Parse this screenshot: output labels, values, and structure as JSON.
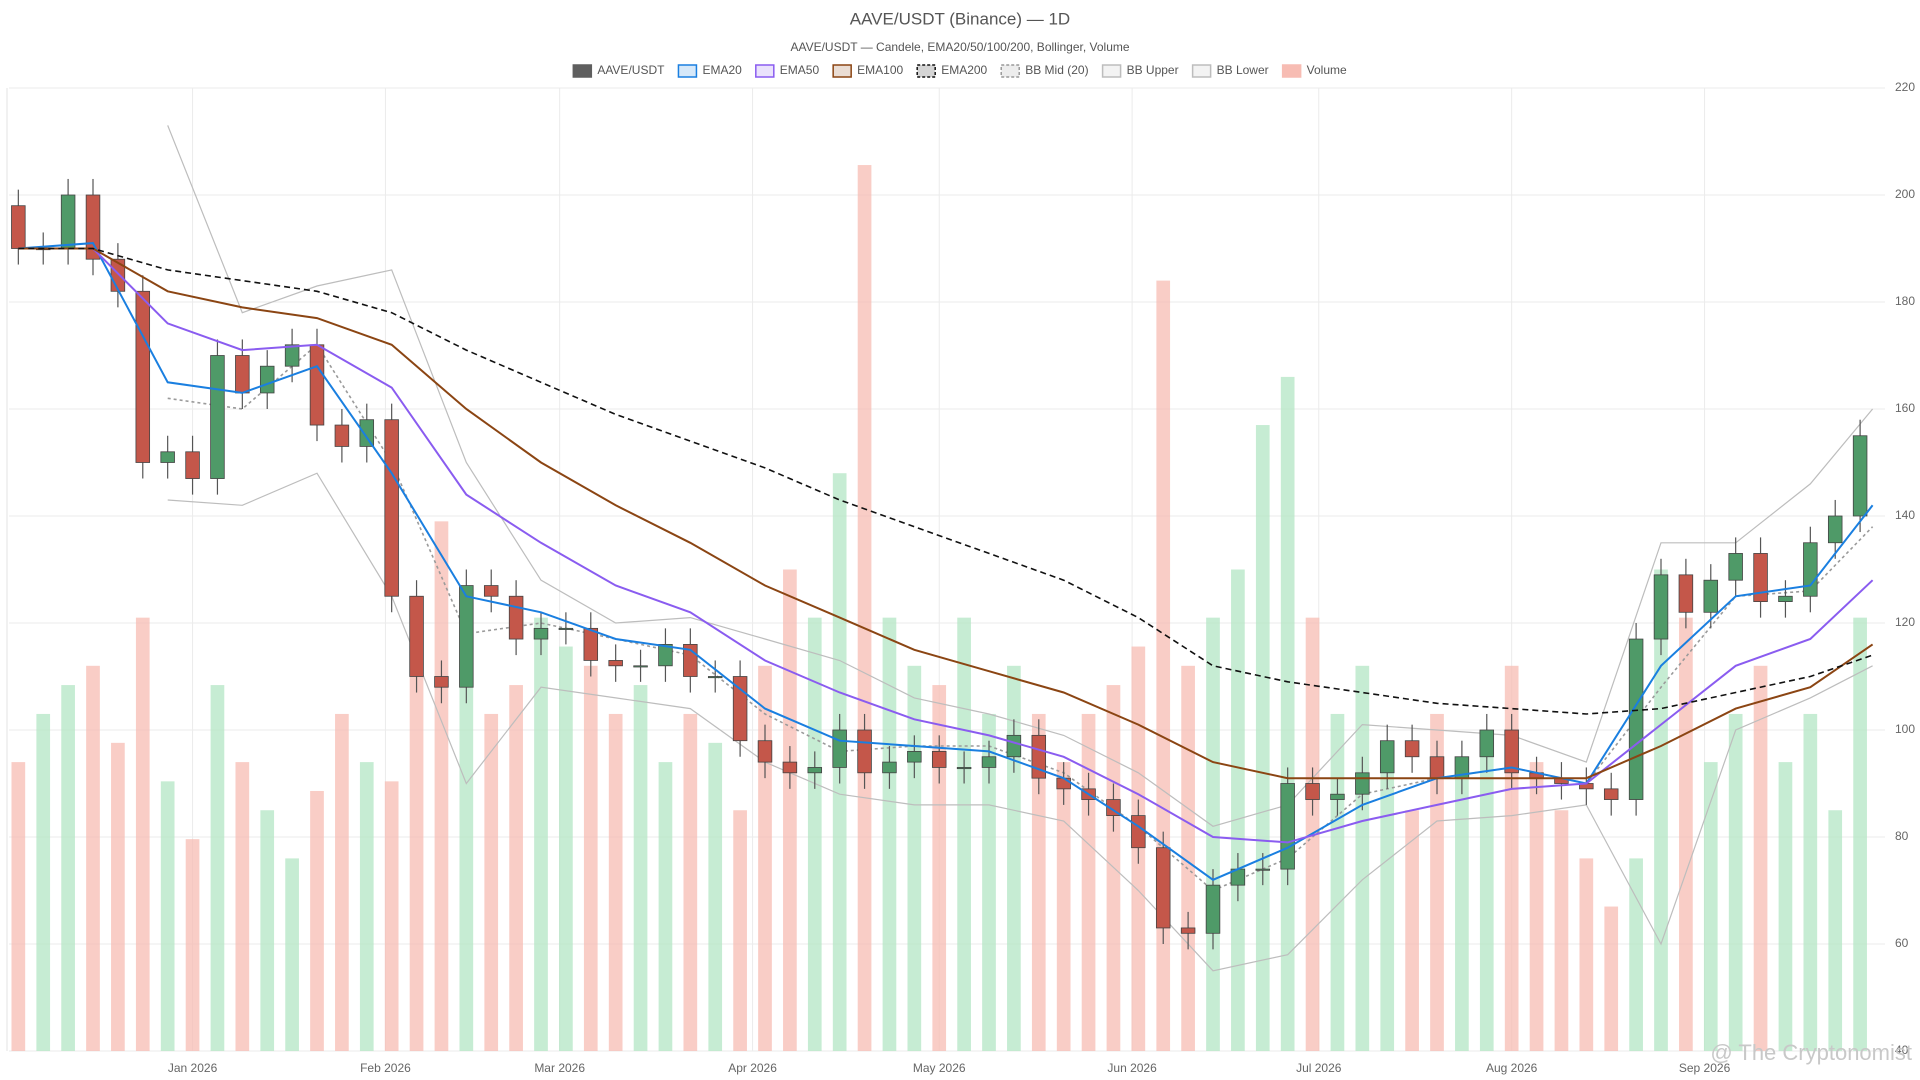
{
  "chart_data": {
    "type": "candlestick",
    "title": "AAVE/USDT (Binance) — 1D",
    "subtitle": "AAVE/USDT — Candele, EMA20/50/100/200, Bollinger, Volume",
    "watermark": "@ The Cryptonomist",
    "name": "AAVE/USDT",
    "color": "#5f5f5f",
    "up_color": "#4f9a68",
    "down_color": "#c4574a",
    "xlim": [
      -1.5,
      300
    ],
    "xticks": [
      {
        "value": 28,
        "label": "Jan 2026"
      },
      {
        "value": 59,
        "label": "Feb 2026"
      },
      {
        "value": 87,
        "label": "Mar 2026"
      },
      {
        "value": 118,
        "label": "Apr 2026"
      },
      {
        "value": 148,
        "label": "May 2026"
      },
      {
        "value": 179,
        "label": "Jun 2026"
      },
      {
        "value": 209,
        "label": "Jul 2026"
      },
      {
        "value": 240,
        "label": "Aug 2026"
      },
      {
        "value": 271,
        "label": "Sep 2026"
      }
    ],
    "ylim": [
      40,
      220
    ],
    "yticks": [
      40,
      60,
      80,
      100,
      120,
      140,
      160,
      180,
      200,
      220
    ],
    "y2lim": [
      0,
      100
    ],
    "grid": true,
    "x": [
      0,
      4,
      8,
      12,
      16,
      20,
      24,
      28,
      32,
      36,
      40,
      44,
      48,
      52,
      56,
      60,
      64,
      68,
      72,
      76,
      80,
      84,
      88,
      92,
      96,
      100,
      104,
      108,
      112,
      116,
      120,
      124,
      128,
      132,
      136,
      140,
      144,
      148,
      152,
      156,
      160,
      164,
      168,
      172,
      176,
      180,
      184,
      188,
      192,
      196,
      200,
      204,
      208,
      212,
      216,
      220,
      224,
      228,
      232,
      236,
      240,
      244,
      248,
      252,
      256,
      260,
      264,
      268,
      272,
      276,
      280,
      284,
      288,
      292,
      296
    ],
    "open": [
      198,
      190,
      190,
      200,
      188,
      182,
      150,
      152,
      147,
      170,
      163,
      168,
      172,
      157,
      153,
      158,
      125,
      110,
      108,
      127,
      125,
      117,
      119,
      119,
      113,
      112,
      112,
      116,
      110,
      110,
      98,
      94,
      92,
      93,
      100,
      92,
      94,
      96,
      93,
      93,
      95,
      99,
      91,
      89,
      87,
      84,
      78,
      63,
      62,
      71,
      74,
      74,
      90,
      87,
      88,
      92,
      98,
      95,
      91,
      95,
      100,
      92,
      91,
      90,
      89,
      87,
      117,
      129,
      122,
      128,
      133,
      124,
      125,
      135,
      140
    ],
    "high": [
      201,
      193,
      203,
      203,
      191,
      185,
      155,
      155,
      173,
      173,
      171,
      175,
      175,
      160,
      161,
      161,
      128,
      113,
      130,
      130,
      128,
      122,
      122,
      122,
      116,
      115,
      119,
      119,
      113,
      113,
      101,
      97,
      96,
      103,
      103,
      97,
      99,
      99,
      96,
      98,
      102,
      102,
      94,
      92,
      90,
      87,
      81,
      66,
      74,
      77,
      77,
      93,
      93,
      91,
      95,
      101,
      101,
      98,
      98,
      103,
      103,
      95,
      94,
      93,
      92,
      120,
      132,
      132,
      131,
      136,
      136,
      128,
      138,
      143,
      158
    ],
    "low": [
      187,
      187,
      187,
      185,
      179,
      147,
      147,
      144,
      144,
      160,
      160,
      165,
      154,
      150,
      150,
      122,
      107,
      105,
      105,
      122,
      114,
      114,
      116,
      110,
      109,
      109,
      109,
      107,
      107,
      95,
      91,
      89,
      89,
      90,
      89,
      89,
      91,
      90,
      90,
      90,
      92,
      88,
      86,
      84,
      81,
      75,
      60,
      59,
      59,
      68,
      71,
      71,
      84,
      84,
      85,
      89,
      92,
      88,
      88,
      92,
      89,
      88,
      87,
      86,
      84,
      84,
      114,
      119,
      119,
      125,
      121,
      121,
      122,
      132,
      137
    ],
    "close": [
      190,
      190,
      200,
      188,
      182,
      150,
      152,
      147,
      170,
      163,
      168,
      172,
      157,
      153,
      158,
      125,
      110,
      108,
      127,
      125,
      117,
      119,
      119,
      113,
      112,
      112,
      116,
      110,
      110,
      98,
      94,
      92,
      93,
      100,
      92,
      94,
      96,
      93,
      93,
      95,
      99,
      91,
      89,
      87,
      84,
      78,
      63,
      62,
      71,
      74,
      74,
      90,
      87,
      88,
      92,
      98,
      95,
      91,
      95,
      100,
      92,
      91,
      90,
      89,
      87,
      117,
      129,
      122,
      128,
      133,
      124,
      125,
      135,
      140,
      155
    ],
    "volume": {
      "name": "Volume",
      "up_color": "#b3e6c4",
      "down_color": "#f7bcb3",
      "values": [
        30,
        35,
        38,
        40,
        32,
        45,
        28,
        22,
        38,
        30,
        25,
        20,
        27,
        35,
        30,
        28,
        45,
        55,
        40,
        35,
        38,
        45,
        42,
        40,
        35,
        38,
        30,
        35,
        32,
        25,
        40,
        50,
        45,
        60,
        92,
        45,
        40,
        38,
        45,
        35,
        40,
        35,
        30,
        35,
        38,
        42,
        80,
        40,
        45,
        50,
        65,
        70,
        45,
        35,
        40,
        30,
        25,
        35,
        30,
        32,
        40,
        30,
        25,
        20,
        15,
        20,
        50,
        45,
        30,
        35,
        40,
        30,
        35,
        25,
        45
      ]
    },
    "line_x": [
      0,
      12,
      24,
      36,
      48,
      60,
      72,
      84,
      96,
      108,
      120,
      132,
      144,
      156,
      168,
      180,
      192,
      204,
      216,
      228,
      240,
      252,
      264,
      276,
      288,
      298
    ],
    "lines": [
      {
        "name": "EMA20",
        "color": "#1a7fe0",
        "dashed": false,
        "values": [
          190,
          191,
          165,
          163,
          168,
          148,
          125,
          122,
          117,
          115,
          104,
          98,
          97,
          96,
          91,
          82,
          72,
          78,
          86,
          91,
          93,
          90,
          112,
          125,
          127,
          142
        ]
      },
      {
        "name": "EMA50",
        "color": "#8a5cf0",
        "dashed": false,
        "values": [
          190,
          190,
          176,
          171,
          172,
          164,
          144,
          135,
          127,
          122,
          113,
          107,
          102,
          99,
          95,
          88,
          80,
          79,
          83,
          86,
          89,
          90,
          101,
          112,
          117,
          128
        ]
      },
      {
        "name": "EMA100",
        "color": "#8b4513",
        "dashed": false,
        "values": [
          190,
          190,
          182,
          179,
          177,
          172,
          160,
          150,
          142,
          135,
          127,
          121,
          115,
          111,
          107,
          101,
          94,
          91,
          91,
          91,
          91,
          91,
          97,
          104,
          108,
          116
        ]
      },
      {
        "name": "EMA200",
        "color": "#111111",
        "dashed": true,
        "values": [
          190,
          190,
          186,
          184,
          182,
          178,
          171,
          165,
          159,
          154,
          149,
          143,
          138,
          133,
          128,
          121,
          112,
          109,
          107,
          105,
          104,
          103,
          104,
          107,
          110,
          114
        ]
      },
      {
        "name": "BB Mid (20)",
        "color": "#9a9a9a",
        "dashed": true,
        "values": [
          null,
          null,
          162,
          160,
          172,
          150,
          118,
          120,
          117,
          114,
          103,
          96,
          97,
          97,
          92,
          82,
          70,
          76,
          88,
          91,
          93,
          90,
          108,
          125,
          126,
          138
        ]
      },
      {
        "name": "BB Upper",
        "color": "#bdbdbd",
        "dashed": false,
        "values": [
          null,
          null,
          213,
          178,
          183,
          186,
          150,
          128,
          120,
          121,
          117,
          113,
          106,
          103,
          99,
          92,
          82,
          86,
          101,
          100,
          99,
          94,
          135,
          135,
          146,
          160
        ]
      },
      {
        "name": "BB Lower",
        "color": "#bdbdbd",
        "dashed": false,
        "values": [
          null,
          null,
          143,
          142,
          148,
          125,
          90,
          108,
          106,
          104,
          94,
          88,
          86,
          86,
          83,
          70,
          55,
          58,
          72,
          83,
          84,
          86,
          60,
          100,
          106,
          112
        ]
      }
    ]
  }
}
